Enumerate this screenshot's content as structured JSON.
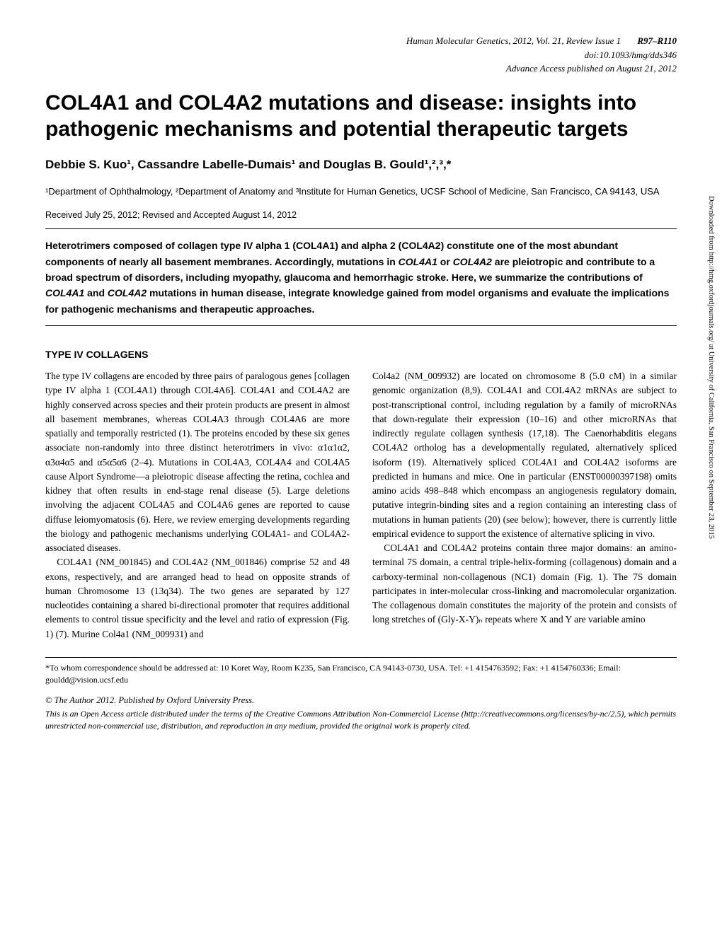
{
  "header": {
    "journal": "Human Molecular Genetics, 2012, Vol. 21, Review Issue 1",
    "pages": "R97–R110",
    "doi": "doi:10.1093/hmg/dds346",
    "advance": "Advance Access published on August 21, 2012"
  },
  "title": "COL4A1 and COL4A2 mutations and disease: insights into pathogenic mechanisms and potential therapeutic targets",
  "authors": "Debbie S. Kuo¹, Cassandre Labelle-Dumais¹ and Douglas B. Gould¹,²,³,*",
  "affiliation": "¹Department of Ophthalmology, ²Department of Anatomy and ³Institute for Human Genetics, UCSF School of Medicine, San Francisco, CA 94143, USA",
  "received": "Received July 25, 2012; Revised and Accepted August 14, 2012",
  "abstract": {
    "text_parts": [
      "Heterotrimers composed of collagen type IV alpha 1 (COL4A1) and alpha 2 (COL4A2) constitute one of the most abundant components of nearly all basement membranes. Accordingly, mutations in ",
      "COL4A1",
      " or ",
      "COL4A2",
      " are pleiotropic and contribute to a broad spectrum of disorders, including myopathy, glaucoma and hemorrhagic stroke. Here, we summarize the contributions of ",
      "COL4A1",
      " and ",
      "COL4A2",
      " mutations in human disease, integrate knowledge gained from model organisms and evaluate the implications for pathogenic mechanisms and therapeutic approaches."
    ]
  },
  "section_head": "TYPE IV COLLAGENS",
  "body": {
    "left": {
      "p1": "The type IV collagens are encoded by three pairs of paralogous genes [collagen type IV alpha 1 (COL4A1) through COL4A6]. COL4A1 and COL4A2 are highly conserved across species and their protein products are present in almost all basement membranes, whereas COL4A3 through COL4A6 are more spatially and temporally restricted (1). The proteins encoded by these six genes associate non-randomly into three distinct heterotrimers in vivo: α1α1α2, α3α4α5 and α5α5α6 (2–4). Mutations in COL4A3, COL4A4 and COL4A5 cause Alport Syndrome—a pleiotropic disease affecting the retina, cochlea and kidney that often results in end-stage renal disease (5). Large deletions involving the adjacent COL4A5 and COL4A6 genes are reported to cause diffuse leiomyomatosis (6). Here, we review emerging developments regarding the biology and pathogenic mechanisms underlying COL4A1- and COL4A2-associated diseases.",
      "p2": "COL4A1 (NM_001845) and COL4A2 (NM_001846) comprise 52 and 48 exons, respectively, and are arranged head to head on opposite strands of human Chromosome 13 (13q34). The two genes are separated by 127 nucleotides containing a shared bi-directional promoter that requires additional elements to control tissue specificity and the level and ratio of expression (Fig. 1) (7). Murine Col4a1 (NM_009931) and"
    },
    "right": {
      "p1": "Col4a2 (NM_009932) are located on chromosome 8 (5.0 cM) in a similar genomic organization (8,9). COL4A1 and COL4A2 mRNAs are subject to post-transcriptional control, including regulation by a family of microRNAs that down-regulate their expression (10–16) and other microRNAs that indirectly regulate collagen synthesis (17,18). The Caenorhabditis elegans COL4A2 ortholog has a developmentally regulated, alternatively spliced isoform (19). Alternatively spliced COL4A1 and COL4A2 isoforms are predicted in humans and mice. One in particular (ENST00000397198) omits amino acids 498–848 which encompass an angiogenesis regulatory domain, putative integrin-binding sites and a region containing an interesting class of mutations in human patients (20) (see below); however, there is currently little empirical evidence to support the existence of alternative splicing in vivo.",
      "p2": "COL4A1 and COL4A2 proteins contain three major domains: an amino-terminal 7S domain, a central triple-helix-forming (collagenous) domain and a carboxy-terminal non-collagenous (NC1) domain (Fig. 1). The 7S domain participates in inter-molecular cross-linking and macromolecular organization. The collagenous domain constitutes the majority of the protein and consists of long stretches of (Gly-X-Y)ₙ repeats where X and Y are variable amino"
    }
  },
  "footnote": "*To whom correspondence should be addressed at: 10 Koret Way, Room K235, San Francisco, CA 94143-0730, USA. Tel: +1 4154763592; Fax: +1 4154760336; Email: gouldd@vision.ucsf.edu",
  "copyright": "© The Author 2012. Published by Oxford University Press.",
  "license": "This is an Open Access article distributed under the terms of the Creative Commons Attribution Non-Commercial License (http://creativecommons.org/licenses/by-nc/2.5), which permits unrestricted non-commercial use, distribution, and reproduction in any medium, provided the original work is properly cited.",
  "sidebar": "Downloaded from http://hmg.oxfordjournals.org/ at University of California, San Francisco on September 23, 2015"
}
